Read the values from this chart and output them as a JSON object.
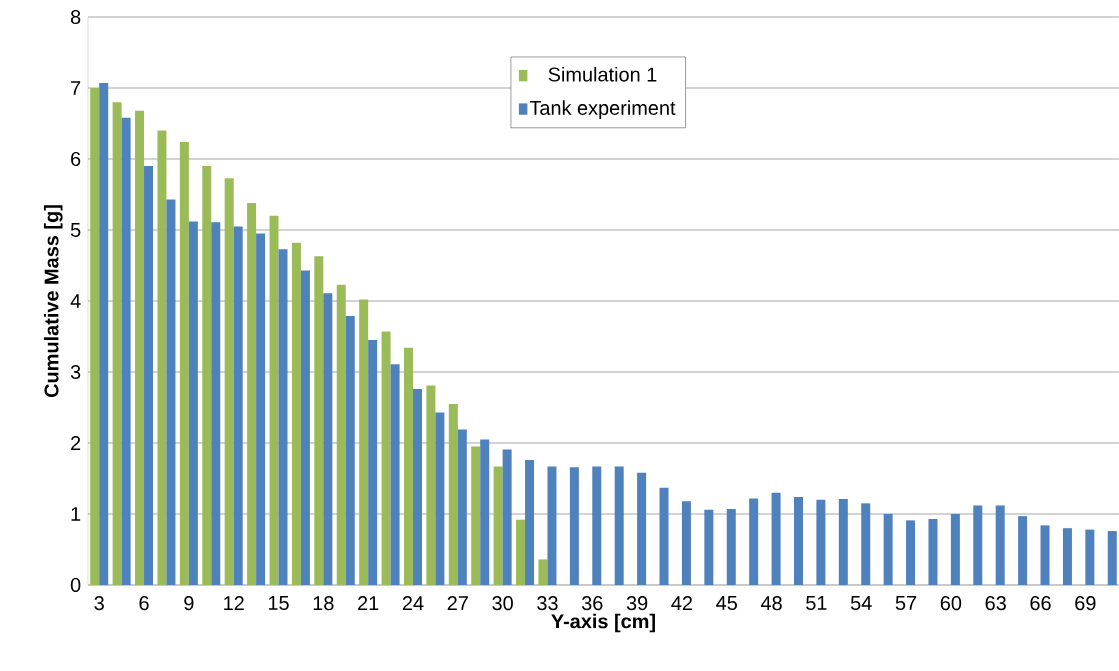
{
  "chart_data": {
    "type": "bar",
    "xlabel": "Y-axis [cm]",
    "ylabel": "Cumulative Mass [g]",
    "categories": [
      "3",
      null,
      "6",
      null,
      "9",
      null,
      "12",
      null,
      "15",
      null,
      "18",
      null,
      "21",
      null,
      "24",
      null,
      "27",
      null,
      "30",
      null,
      "33",
      null,
      "36",
      null,
      "39",
      null,
      "42",
      null,
      "45",
      null,
      "48",
      null,
      "51",
      null,
      "54",
      null,
      "57",
      null,
      "60",
      null,
      "63",
      null,
      "66",
      null,
      "69",
      null
    ],
    "series": [
      {
        "name": "Simulation 1",
        "color": "#9bbb59",
        "values": [
          7.0,
          6.8,
          6.68,
          6.4,
          6.24,
          5.9,
          5.73,
          5.38,
          5.2,
          4.82,
          4.63,
          4.23,
          4.02,
          3.57,
          3.34,
          2.81,
          2.55,
          1.95,
          1.67,
          0.92,
          0.36,
          null,
          null,
          null,
          null,
          null,
          null,
          null,
          null,
          null,
          null,
          null,
          null,
          null,
          null,
          null,
          null,
          null,
          null,
          null,
          null,
          null,
          null,
          null,
          null,
          null
        ]
      },
      {
        "name": "Tank experiment",
        "color": "#4f81bd",
        "values": [
          7.07,
          6.58,
          5.9,
          5.43,
          5.12,
          5.11,
          5.05,
          4.95,
          4.73,
          4.43,
          4.11,
          3.79,
          3.45,
          3.11,
          2.76,
          2.43,
          2.19,
          2.05,
          1.91,
          1.76,
          1.67,
          1.66,
          1.67,
          1.67,
          1.58,
          1.37,
          1.18,
          1.06,
          1.07,
          1.22,
          1.3,
          1.24,
          1.2,
          1.21,
          1.15,
          1.0,
          0.91,
          0.93,
          1.0,
          1.12,
          1.12,
          0.97,
          0.84,
          0.8,
          0.78,
          0.76
        ]
      }
    ],
    "ylim": [
      0,
      8
    ],
    "yticks": [
      0,
      1,
      2,
      3,
      4,
      5,
      6,
      7,
      8
    ],
    "grid": "y",
    "legend": "top"
  }
}
